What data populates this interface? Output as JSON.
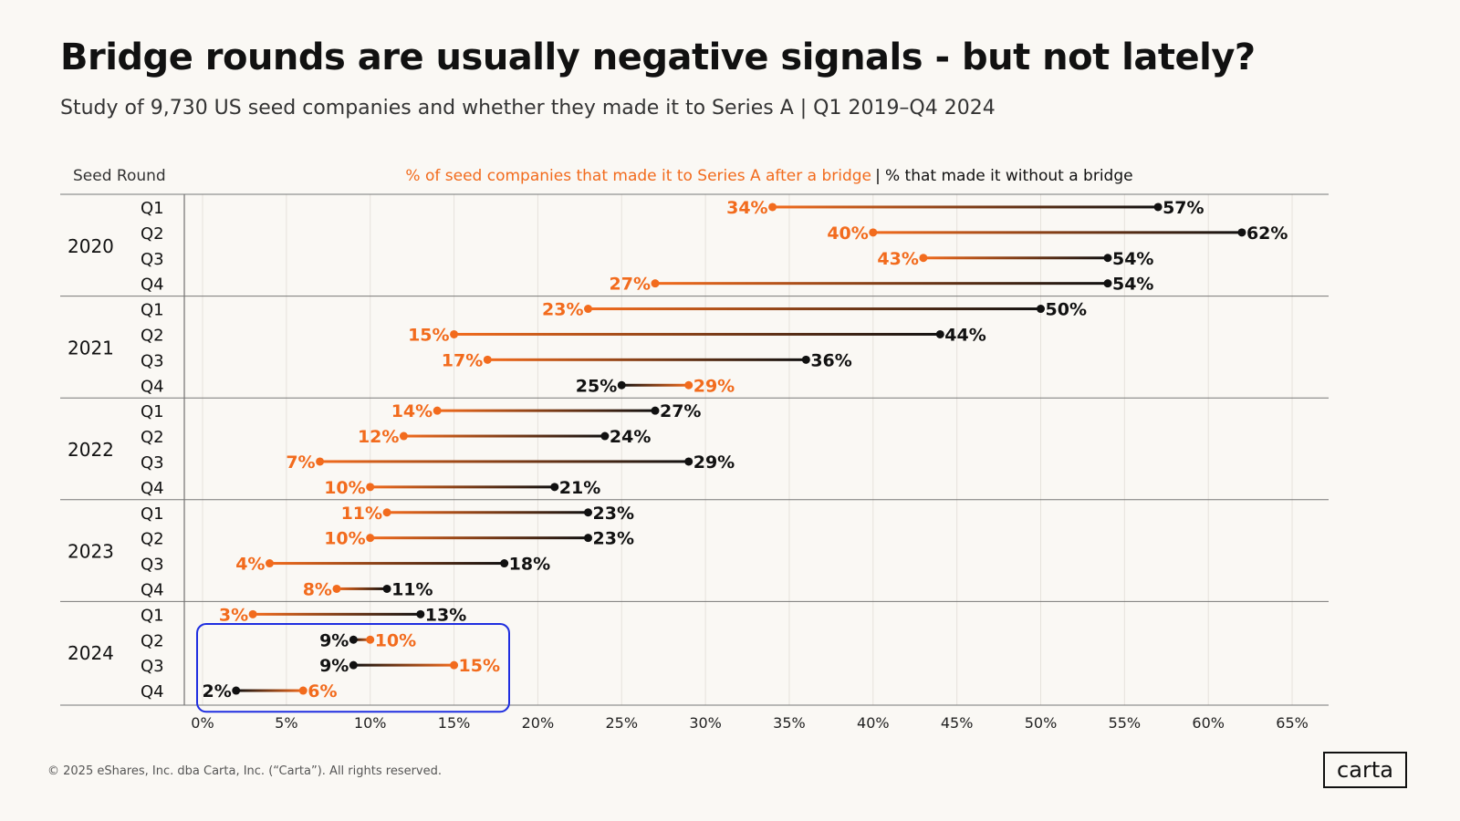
{
  "header": {
    "title": "Bridge rounds are usually negative signals - but not lately?",
    "subtitle": "Study of 9,730 US seed companies and whether they made it to Series A | Q1 2019–Q4 2024"
  },
  "footer": {
    "copyright": "© 2025 eShares, Inc. dba Carta, Inc. (“Carta”). All rights reserved.",
    "logo": "carta"
  },
  "colors": {
    "bridge": "#f26b1d",
    "no_bridge": "#111111",
    "highlight_box": "#1f2ee0",
    "grid": "#e6e2dc"
  },
  "chart_data": {
    "type": "dumbbell",
    "row_header": "Seed Round",
    "legend": {
      "bridge_label": "% of seed companies that made it to Series A after a bridge",
      "separator": "|",
      "no_bridge_label": "% that made it without a bridge"
    },
    "x_ticks": [
      "0%",
      "5%",
      "10%",
      "15%",
      "20%",
      "25%",
      "30%",
      "35%",
      "40%",
      "45%",
      "50%",
      "55%",
      "60%",
      "65%"
    ],
    "xlim": [
      0,
      68
    ],
    "highlight_year": "2024",
    "years": [
      {
        "year": "2020",
        "rows": [
          {
            "quarter": "Q1",
            "bridge": 34,
            "no_bridge": 57
          },
          {
            "quarter": "Q2",
            "bridge": 40,
            "no_bridge": 62
          },
          {
            "quarter": "Q3",
            "bridge": 43,
            "no_bridge": 54
          },
          {
            "quarter": "Q4",
            "bridge": 27,
            "no_bridge": 54
          }
        ]
      },
      {
        "year": "2021",
        "rows": [
          {
            "quarter": "Q1",
            "bridge": 23,
            "no_bridge": 50
          },
          {
            "quarter": "Q2",
            "bridge": 15,
            "no_bridge": 44
          },
          {
            "quarter": "Q3",
            "bridge": 17,
            "no_bridge": 36
          },
          {
            "quarter": "Q4",
            "bridge": 29,
            "no_bridge": 25
          }
        ]
      },
      {
        "year": "2022",
        "rows": [
          {
            "quarter": "Q1",
            "bridge": 14,
            "no_bridge": 27
          },
          {
            "quarter": "Q2",
            "bridge": 12,
            "no_bridge": 24
          },
          {
            "quarter": "Q3",
            "bridge": 7,
            "no_bridge": 29
          },
          {
            "quarter": "Q4",
            "bridge": 10,
            "no_bridge": 21
          }
        ]
      },
      {
        "year": "2023",
        "rows": [
          {
            "quarter": "Q1",
            "bridge": 11,
            "no_bridge": 23
          },
          {
            "quarter": "Q2",
            "bridge": 10,
            "no_bridge": 23
          },
          {
            "quarter": "Q3",
            "bridge": 4,
            "no_bridge": 18
          },
          {
            "quarter": "Q4",
            "bridge": 8,
            "no_bridge": 11
          }
        ]
      },
      {
        "year": "2024",
        "rows": [
          {
            "quarter": "Q1",
            "bridge": 3,
            "no_bridge": 13
          },
          {
            "quarter": "Q2",
            "bridge": 10,
            "no_bridge": 9
          },
          {
            "quarter": "Q3",
            "bridge": 15,
            "no_bridge": 9
          },
          {
            "quarter": "Q4",
            "bridge": 6,
            "no_bridge": 2
          }
        ]
      }
    ]
  }
}
